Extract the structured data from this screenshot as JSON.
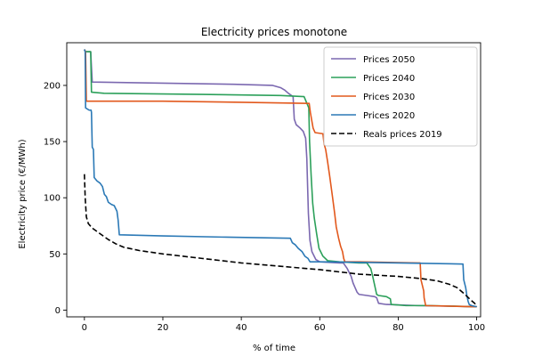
{
  "chart_data": {
    "type": "line",
    "title": "Electricity prices monotone",
    "xlabel": "% of time",
    "ylabel": "Electricity price (€/MWh)",
    "xlim": [
      -4.5,
      101
    ],
    "ylim": [
      -6,
      238
    ],
    "xticks": [
      0,
      20,
      40,
      60,
      80,
      100
    ],
    "yticks": [
      0,
      50,
      100,
      150,
      200
    ],
    "grid": false,
    "legend_position": "top-right",
    "series": [
      {
        "name": "Prices 2050",
        "color": "#7b68b0",
        "style": "solid",
        "points": [
          [
            0,
            232
          ],
          [
            0.3,
            230
          ],
          [
            1.2,
            230
          ],
          [
            1.6,
            230
          ],
          [
            2,
            203
          ],
          [
            20,
            202
          ],
          [
            38,
            201
          ],
          [
            48,
            200
          ],
          [
            50,
            198
          ],
          [
            51,
            196
          ],
          [
            52,
            193
          ],
          [
            53.2,
            190
          ],
          [
            53.5,
            170
          ],
          [
            54,
            165
          ],
          [
            55,
            162
          ],
          [
            55.8,
            159
          ],
          [
            56.4,
            153
          ],
          [
            56.7,
            135
          ],
          [
            56.9,
            110
          ],
          [
            57.1,
            86
          ],
          [
            57.5,
            62
          ],
          [
            58,
            52
          ],
          [
            59,
            45
          ],
          [
            60,
            43
          ],
          [
            65,
            42
          ],
          [
            66,
            42
          ],
          [
            67,
            37
          ],
          [
            68,
            30
          ],
          [
            68.5,
            24
          ],
          [
            69,
            20
          ],
          [
            69.5,
            16
          ],
          [
            70,
            14
          ],
          [
            72,
            13
          ],
          [
            74,
            12
          ],
          [
            74.5,
            11
          ],
          [
            75,
            6
          ],
          [
            77,
            5
          ],
          [
            85,
            4
          ],
          [
            100,
            3
          ]
        ]
      },
      {
        "name": "Prices 2040",
        "color": "#2ca05a",
        "style": "solid",
        "points": [
          [
            0,
            232
          ],
          [
            0.3,
            230
          ],
          [
            1.3,
            230
          ],
          [
            1.6,
            230
          ],
          [
            1.8,
            194
          ],
          [
            5,
            193
          ],
          [
            30,
            192
          ],
          [
            50,
            191
          ],
          [
            56,
            190
          ],
          [
            57.2,
            180
          ],
          [
            57.4,
            150
          ],
          [
            57.6,
            135
          ],
          [
            57.8,
            120
          ],
          [
            58.2,
            95
          ],
          [
            58.6,
            82
          ],
          [
            59.2,
            68
          ],
          [
            59.8,
            55
          ],
          [
            60.8,
            48
          ],
          [
            62,
            44
          ],
          [
            65,
            43
          ],
          [
            70,
            42
          ],
          [
            72,
            42
          ],
          [
            73,
            37
          ],
          [
            73.5,
            30
          ],
          [
            74,
            22
          ],
          [
            74.5,
            14
          ],
          [
            75,
            13
          ],
          [
            77,
            12
          ],
          [
            78,
            10
          ],
          [
            78.2,
            5
          ],
          [
            82,
            4
          ],
          [
            88,
            4
          ],
          [
            100,
            3
          ]
        ]
      },
      {
        "name": "Prices 2030",
        "color": "#e2581c",
        "style": "solid",
        "points": [
          [
            0,
            232
          ],
          [
            0.3,
            230
          ],
          [
            0.5,
            186
          ],
          [
            5,
            186
          ],
          [
            20,
            186
          ],
          [
            40,
            185
          ],
          [
            57.3,
            184
          ],
          [
            57.6,
            176
          ],
          [
            57.9,
            170
          ],
          [
            58.3,
            162
          ],
          [
            58.8,
            158
          ],
          [
            60.8,
            157
          ],
          [
            61.1,
            148
          ],
          [
            61.5,
            143
          ],
          [
            62,
            132
          ],
          [
            62.5,
            120
          ],
          [
            63.2,
            102
          ],
          [
            63.8,
            86
          ],
          [
            64.2,
            74
          ],
          [
            64.8,
            64
          ],
          [
            65.3,
            57
          ],
          [
            65.8,
            52
          ],
          [
            66.1,
            46
          ],
          [
            66.4,
            43
          ],
          [
            70,
            43
          ],
          [
            85,
            42
          ],
          [
            85.6,
            42
          ],
          [
            85.8,
            27
          ],
          [
            86.5,
            17
          ],
          [
            86.6,
            11
          ],
          [
            87,
            4
          ],
          [
            100,
            3
          ]
        ]
      },
      {
        "name": "Prices 2020",
        "color": "#2b79b6",
        "style": "solid",
        "points": [
          [
            0,
            232
          ],
          [
            0.2,
            230
          ],
          [
            0.3,
            180
          ],
          [
            1.2,
            178
          ],
          [
            1.7,
            178
          ],
          [
            1.8,
            176
          ],
          [
            2,
            145
          ],
          [
            2.3,
            143
          ],
          [
            2.5,
            118
          ],
          [
            3.2,
            115
          ],
          [
            4,
            113
          ],
          [
            4.6,
            110
          ],
          [
            5.1,
            103
          ],
          [
            5.6,
            101
          ],
          [
            6.1,
            96
          ],
          [
            6.9,
            94
          ],
          [
            7.6,
            93
          ],
          [
            8.3,
            88
          ],
          [
            8.6,
            80
          ],
          [
            8.9,
            67
          ],
          [
            20,
            66
          ],
          [
            35,
            65
          ],
          [
            52.5,
            64
          ],
          [
            53,
            60
          ],
          [
            53.8,
            58
          ],
          [
            54.5,
            55
          ],
          [
            55.5,
            52
          ],
          [
            56.2,
            48
          ],
          [
            57,
            46
          ],
          [
            57.5,
            43
          ],
          [
            60,
            43
          ],
          [
            80,
            42
          ],
          [
            96.5,
            41
          ],
          [
            96.7,
            27
          ],
          [
            97.2,
            20
          ],
          [
            97.5,
            13
          ],
          [
            97.8,
            8
          ],
          [
            98.1,
            5
          ],
          [
            98.7,
            4
          ],
          [
            100,
            3
          ]
        ]
      },
      {
        "name": "Reals prices 2019",
        "color": "#000000",
        "style": "dashed",
        "points": [
          [
            0,
            121
          ],
          [
            0.2,
            100
          ],
          [
            0.5,
            83
          ],
          [
            1,
            77
          ],
          [
            2,
            73
          ],
          [
            4,
            68
          ],
          [
            6,
            63
          ],
          [
            8,
            59
          ],
          [
            10,
            56
          ],
          [
            14,
            53
          ],
          [
            20,
            50
          ],
          [
            30,
            46
          ],
          [
            40,
            42
          ],
          [
            50,
            39
          ],
          [
            60,
            36
          ],
          [
            70,
            32
          ],
          [
            80,
            30
          ],
          [
            86,
            28
          ],
          [
            90,
            26
          ],
          [
            93,
            23
          ],
          [
            95,
            20
          ],
          [
            97,
            14
          ],
          [
            98.5,
            9
          ],
          [
            99.5,
            6
          ],
          [
            100,
            3
          ]
        ]
      }
    ]
  }
}
